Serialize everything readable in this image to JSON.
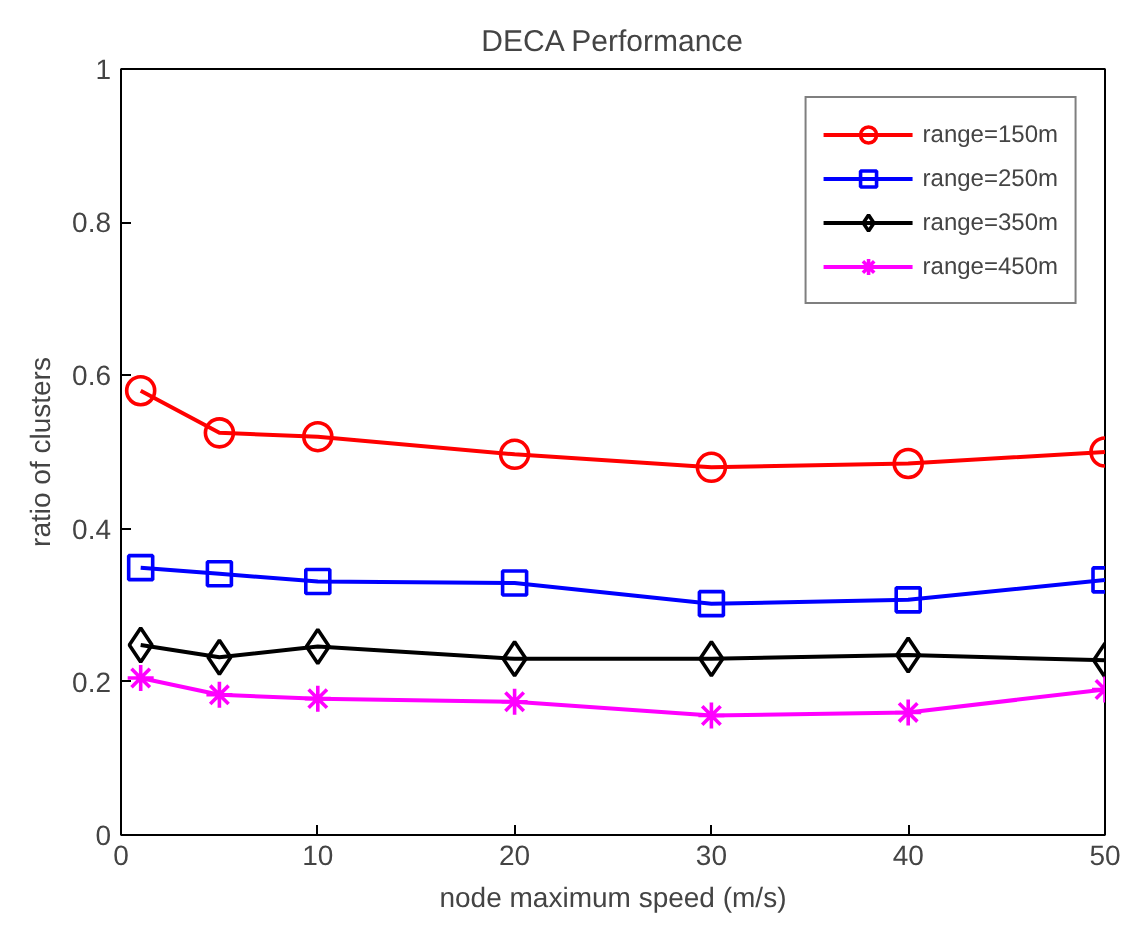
{
  "chart_data": {
    "type": "line",
    "title": "DECA Performance",
    "xlabel": "node maximum speed (m/s)",
    "ylabel": "ratio of clusters",
    "x": [
      1,
      5,
      10,
      20,
      30,
      40,
      50
    ],
    "series": [
      {
        "name": "range=150m",
        "color": "#ff0000",
        "marker": "circle",
        "values": [
          0.58,
          0.525,
          0.52,
          0.497,
          0.48,
          0.485,
          0.5
        ]
      },
      {
        "name": "range=250m",
        "color": "#0000ff",
        "marker": "square",
        "values": [
          0.349,
          0.341,
          0.331,
          0.329,
          0.302,
          0.307,
          0.333
        ]
      },
      {
        "name": "range=350m",
        "color": "#000000",
        "marker": "diamond",
        "values": [
          0.248,
          0.232,
          0.246,
          0.23,
          0.23,
          0.235,
          0.228
        ]
      },
      {
        "name": "range=450m",
        "color": "#ff00ff",
        "marker": "cross",
        "values": [
          0.205,
          0.183,
          0.178,
          0.174,
          0.156,
          0.16,
          0.19
        ]
      }
    ],
    "xlim": [
      0,
      50
    ],
    "ylim": [
      0,
      1
    ],
    "xticks": [
      0,
      10,
      20,
      30,
      40,
      50
    ],
    "yticks": [
      0,
      0.2,
      0.4,
      0.6,
      0.8,
      1
    ],
    "grid": false,
    "legend": "top right",
    "line_style": "solid"
  }
}
